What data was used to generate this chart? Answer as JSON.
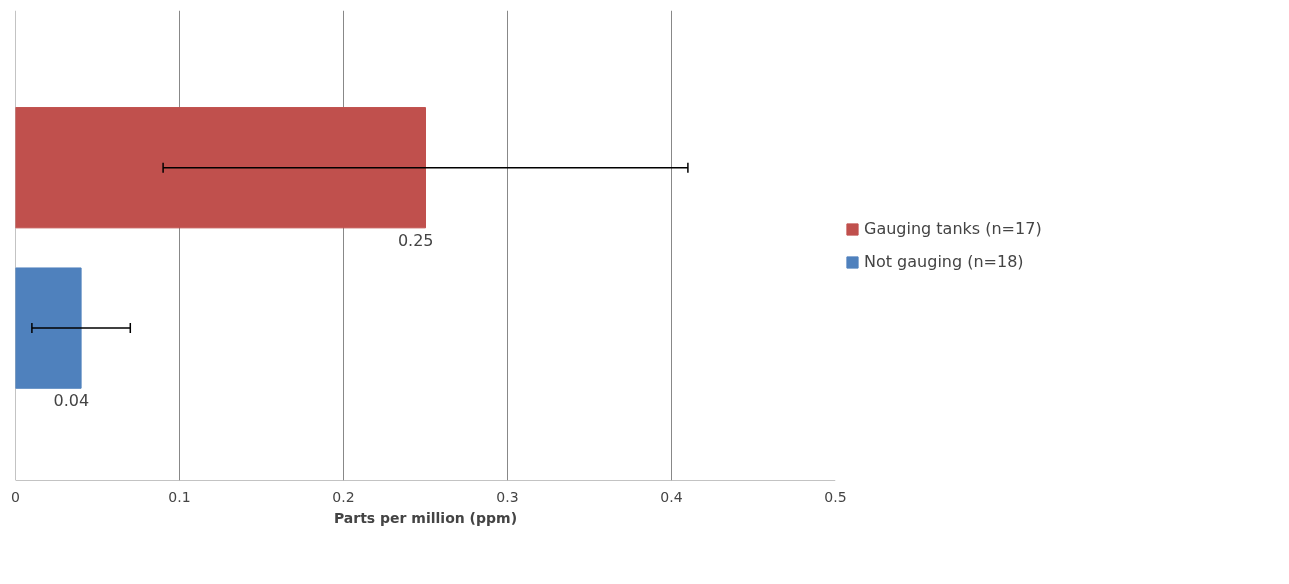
{
  "chart_data": {
    "type": "bar",
    "orientation": "horizontal",
    "xlabel": "Parts per million (ppm)",
    "categories": [
      null,
      null
    ],
    "series": [
      {
        "name": "Gauging tanks (n=17)",
        "color": "#c0504d",
        "values": [
          0.25,
          null
        ],
        "errors": [
          [
            0.09,
            0.41
          ],
          null
        ],
        "value_labels": [
          "0.25",
          null
        ]
      },
      {
        "name": "Not gauging (n=18)",
        "color": "#4f81bd",
        "values": [
          null,
          0.04
        ],
        "errors": [
          null,
          [
            0.01,
            0.07
          ]
        ],
        "value_labels": [
          null,
          "0.04"
        ]
      }
    ],
    "xlim": [
      0,
      0.5
    ],
    "xticks": [
      0,
      0.1,
      0.2,
      0.3,
      0.4,
      0.5
    ],
    "grid": "x",
    "legend": "right"
  }
}
